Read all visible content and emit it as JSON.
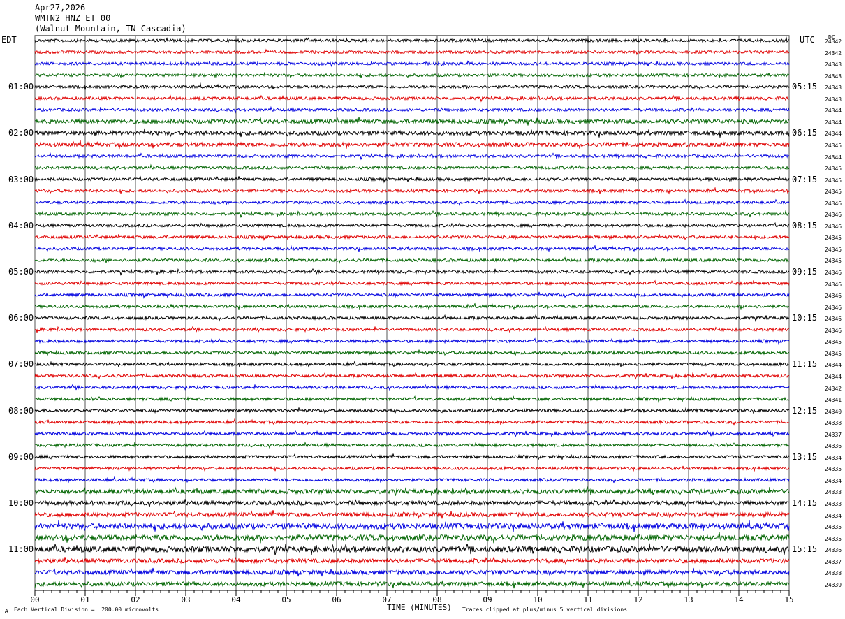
{
  "header": {
    "date": "Apr27,2026",
    "channel": "WMTN2 HNZ ET 00",
    "station": "(Walnut Mountain, TN Cascadia)"
  },
  "left_tz": "EDT",
  "right_tz": "UTC",
  "dc_label": "DC",
  "footer": {
    "scale": "Each Vertical Division =  200.00 microvolts",
    "xlabel": "TIME (MINUTES)",
    "clip": "Traces clipped at plus/minus 5 vertical divisions",
    "mark": "·A"
  },
  "chart_data": {
    "type": "line",
    "xlabel": "TIME (MINUTES)",
    "xlim": [
      0,
      15
    ],
    "x_ticks": [
      "00",
      "01",
      "02",
      "03",
      "04",
      "05",
      "06",
      "07",
      "08",
      "09",
      "10",
      "11",
      "12",
      "13",
      "14",
      "15"
    ],
    "series_colors": [
      "#000000",
      "#e00000",
      "#0000e0",
      "#006400"
    ],
    "left_hour_labels": [
      "01:00",
      "02:00",
      "03:00",
      "04:00",
      "05:00",
      "06:00",
      "07:00",
      "08:00",
      "09:00",
      "10:00",
      "11:00"
    ],
    "right_hour_labels": [
      "05:15",
      "06:15",
      "07:15",
      "08:15",
      "09:15",
      "10:15",
      "11:15",
      "12:15",
      "13:15",
      "14:15",
      "15:15"
    ],
    "dc_offsets": [
      "24342",
      "24342",
      "24343",
      "24343",
      "24343",
      "24343",
      "24344",
      "24344",
      "24344",
      "24345",
      "24344",
      "24345",
      "24345",
      "24345",
      "24346",
      "24346",
      "24346",
      "24345",
      "24345",
      "24345",
      "24346",
      "24346",
      "24346",
      "24346",
      "24346",
      "24346",
      "24345",
      "24345",
      "24344",
      "24344",
      "24342",
      "24341",
      "24340",
      "24338",
      "24337",
      "24336",
      "24334",
      "24335",
      "24334",
      "24333",
      "24333",
      "24334",
      "24335",
      "24335",
      "24336",
      "24337",
      "24338",
      "24339"
    ],
    "trace_noise_levels": [
      2,
      2,
      2,
      2,
      2,
      2,
      2,
      3,
      3,
      3,
      2,
      2,
      2,
      2,
      2,
      2,
      2,
      2,
      2,
      2,
      2,
      2,
      2,
      2,
      2,
      2,
      2,
      2,
      2,
      2,
      2,
      2,
      2,
      2,
      2,
      2,
      2,
      2,
      2,
      3,
      3,
      3,
      4,
      4,
      4,
      3,
      3,
      3
    ]
  }
}
